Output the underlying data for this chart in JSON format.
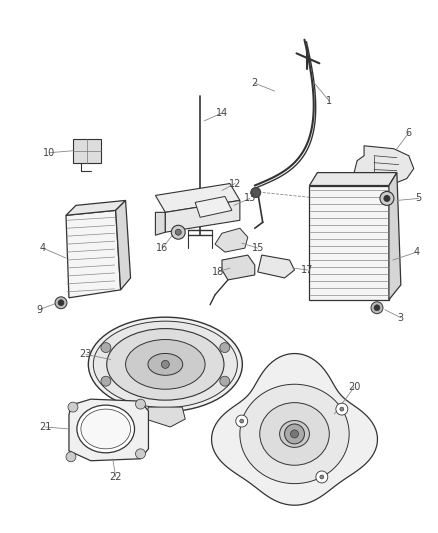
{
  "background_color": "#ffffff",
  "fig_width": 4.38,
  "fig_height": 5.33,
  "line_color": "#333333",
  "label_color": "#444444",
  "label_fontsize": 7.0
}
